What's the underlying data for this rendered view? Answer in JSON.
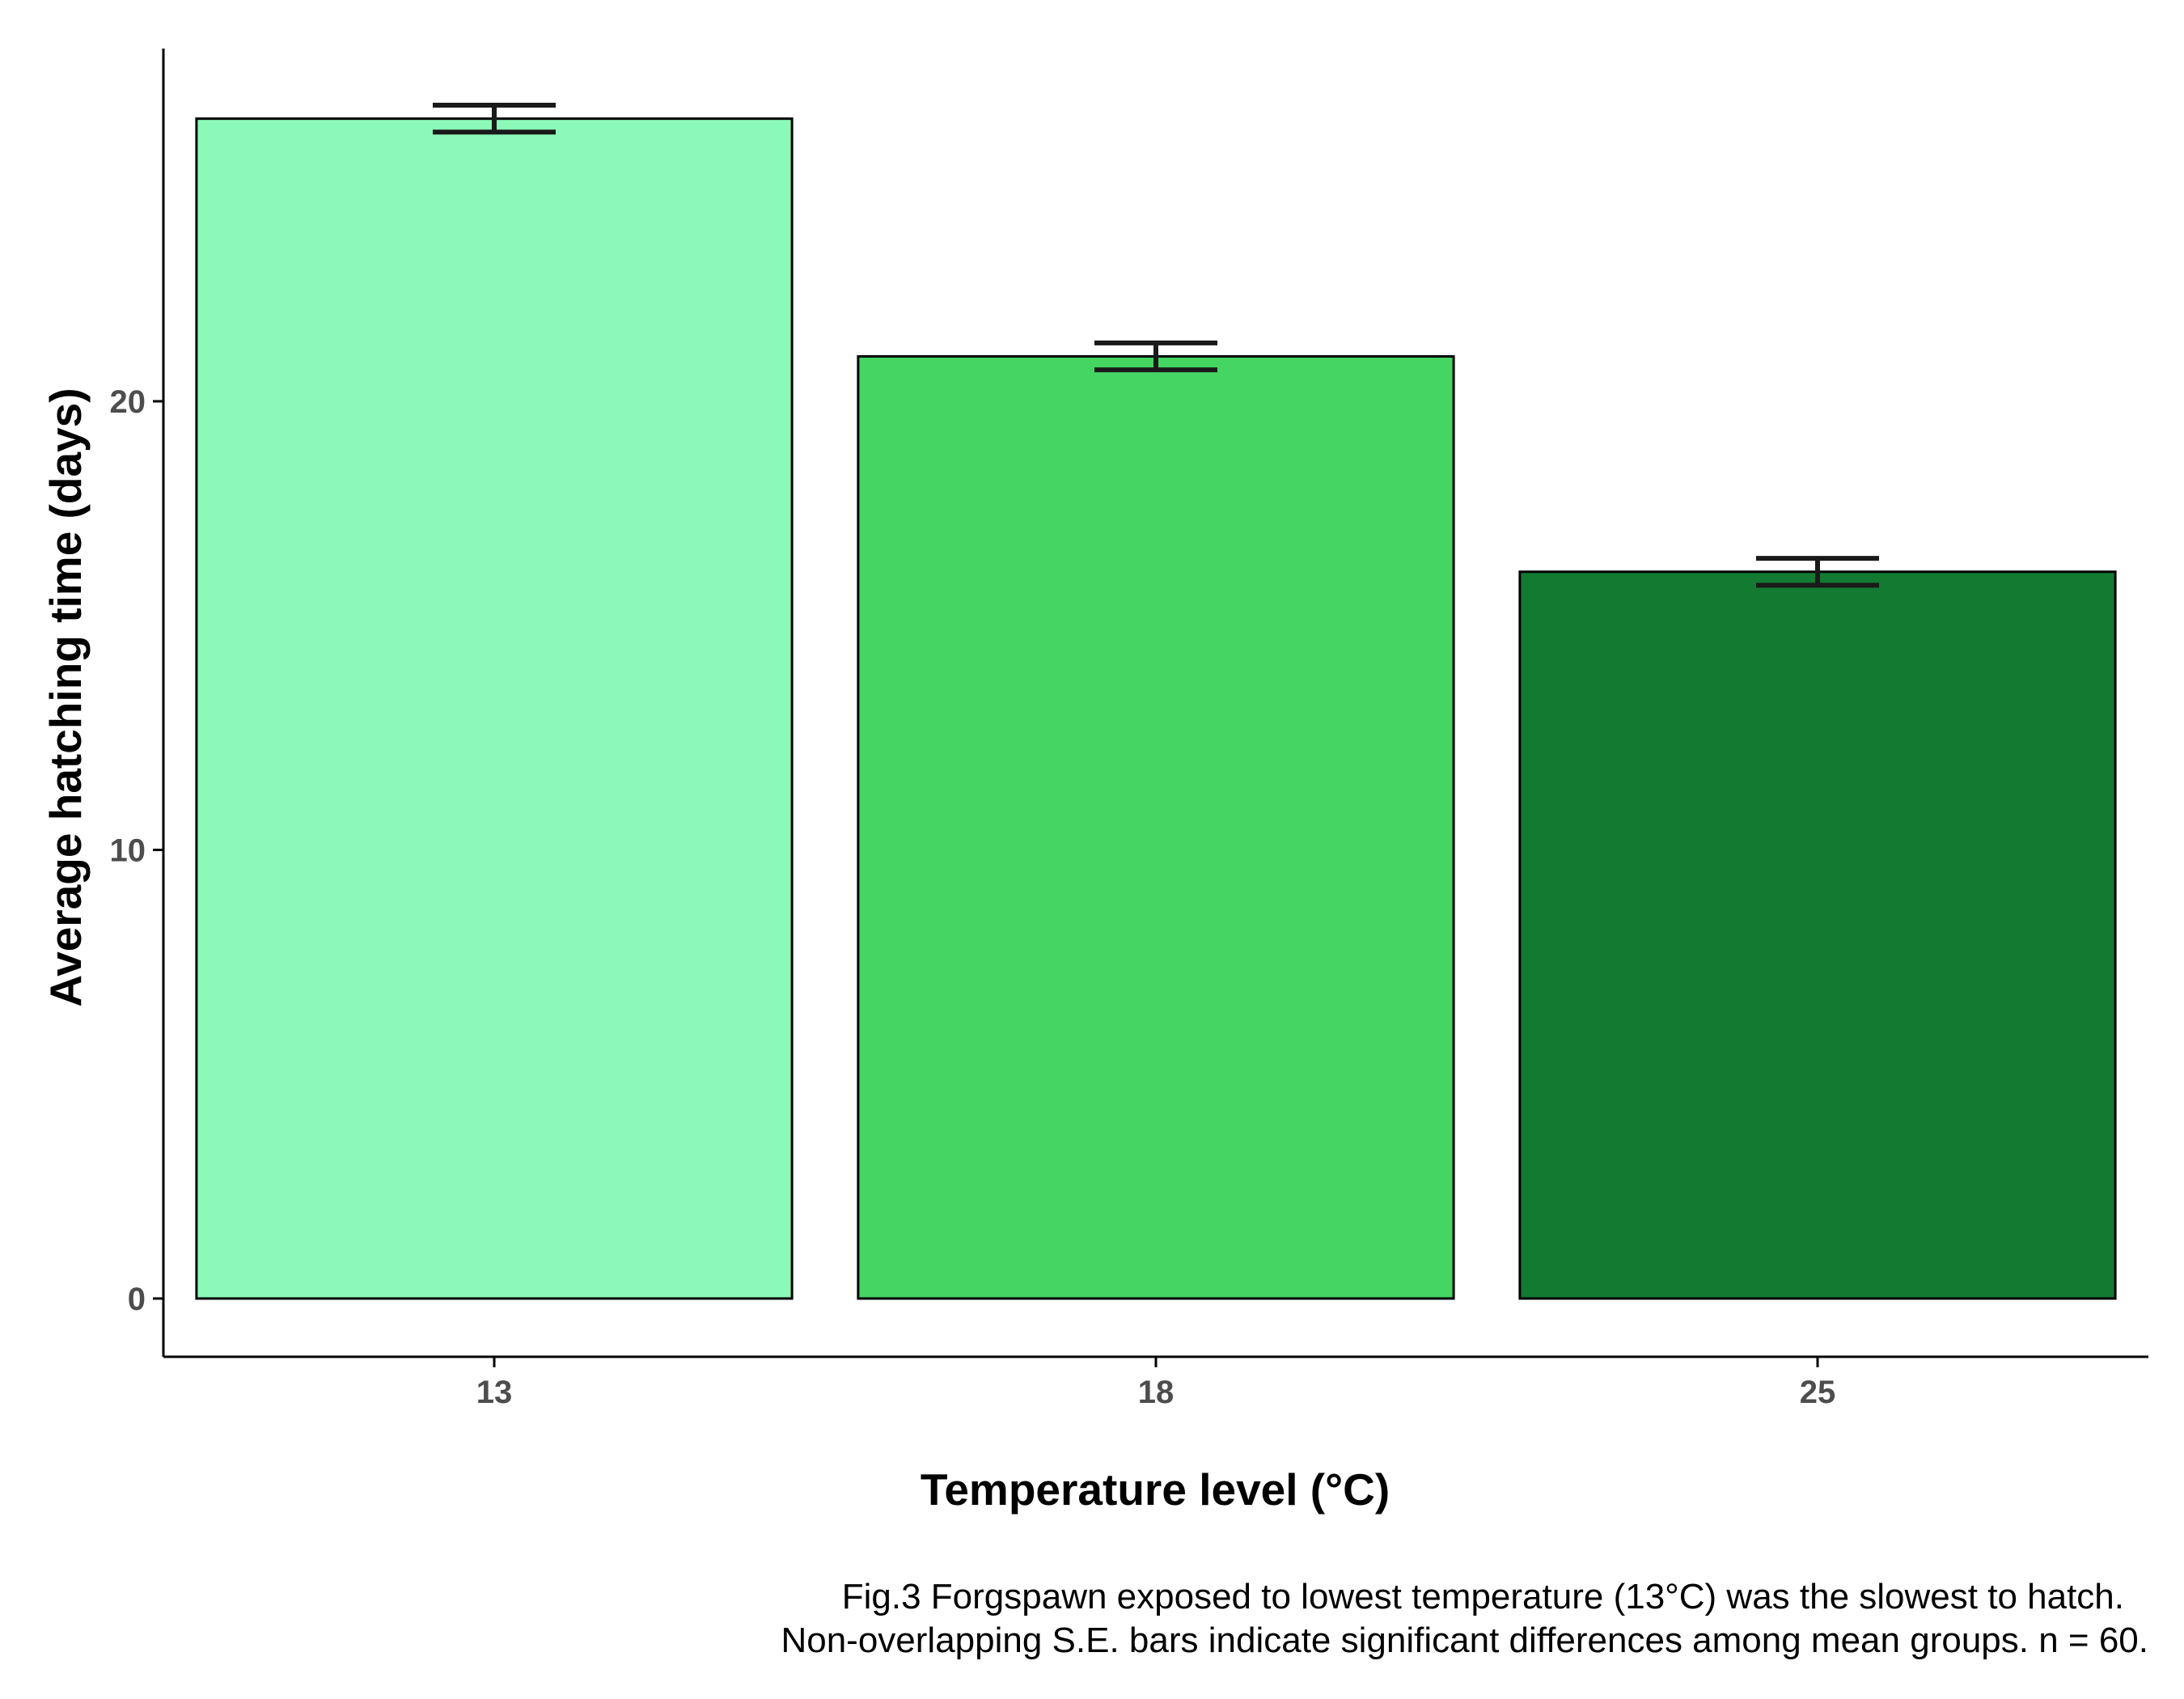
{
  "chart_data": {
    "type": "bar",
    "categories": [
      "13",
      "18",
      "25"
    ],
    "values": [
      26.3,
      21.0,
      16.2
    ],
    "error_bars": [
      {
        "lower": 26.0,
        "upper": 26.6
      },
      {
        "lower": 20.7,
        "upper": 21.3
      },
      {
        "lower": 15.9,
        "upper": 16.5
      }
    ],
    "xlabel": "Temperature level (°C)",
    "ylabel": "Average hatching time (days)",
    "yticks": [
      0,
      10,
      20
    ],
    "ylim": [
      -1.3,
      28
    ],
    "grid": false,
    "bar_colors": [
      "#8bf9b7",
      "#44d563",
      "#137a32"
    ],
    "bar_outline": "#000000",
    "errorbar_color": "#1a1a1a"
  },
  "caption": {
    "line1": "Fig.3 Forgspawn exposed to lowest temperature (13°C) was the slowest to hatch.",
    "line2": "Non-overlapping S.E. bars indicate significant differences among mean groups. n = 60."
  }
}
